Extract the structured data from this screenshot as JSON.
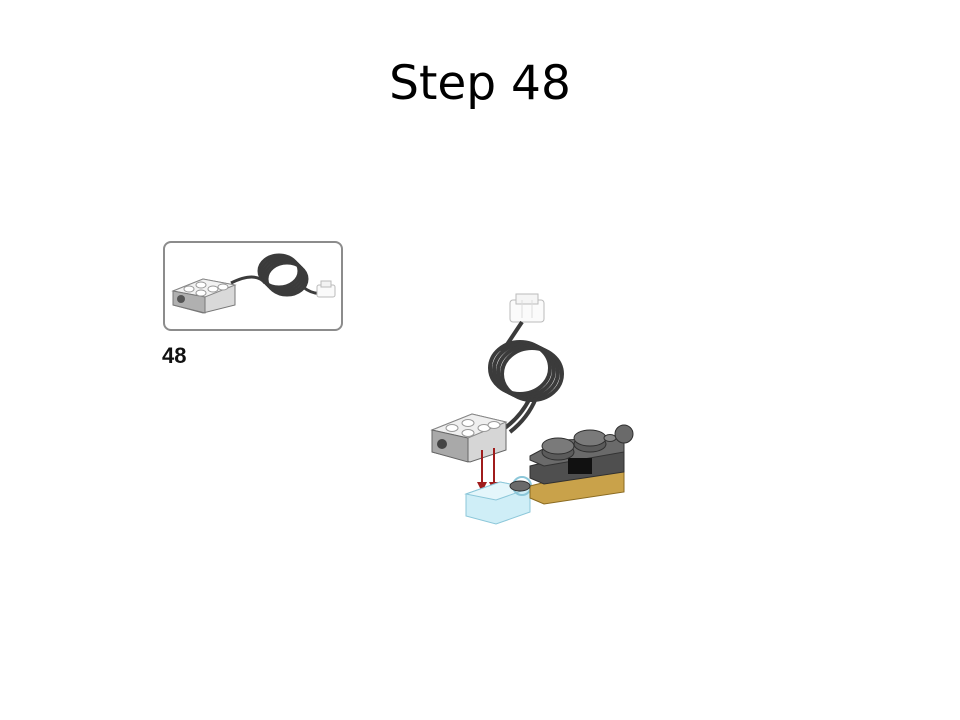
{
  "slide": {
    "title": "Step 48"
  },
  "instruction": {
    "step_number": "48",
    "parts_callout": {
      "parts": [
        "motion-sensor-with-cable-icon"
      ]
    },
    "assembly": {
      "icons": [
        "motion-sensor-icon",
        "cable-coil-icon",
        "cable-plug-icon",
        "placement-arrow-icon",
        "transparent-brick-icon",
        "base-assembly-icon"
      ]
    }
  },
  "colors": {
    "cable": "#3b3b3b",
    "sensor_white": "#e6e6e6",
    "sensor_gray": "#9a9a9a",
    "arrow": "#a01c1c",
    "transparent_brick": "#bfe6f2",
    "base_dark": "#4f4f4f",
    "base_tan": "#c9a24a"
  }
}
